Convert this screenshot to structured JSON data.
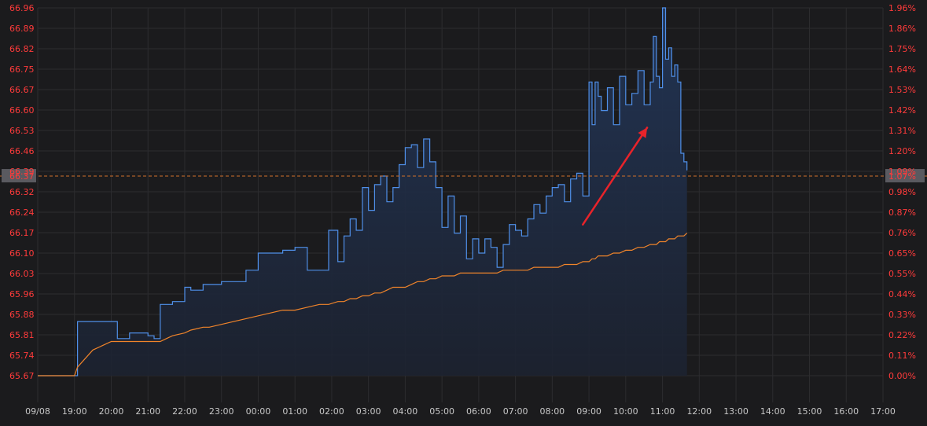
{
  "chart_data": {
    "type": "line",
    "title": "",
    "xlabel": "",
    "ylabel": "",
    "ylim": [
      65.67,
      66.96
    ],
    "pct_lim": [
      0.0,
      1.96
    ],
    "grid": true,
    "colors": {
      "background": "#1b1b1d",
      "grid": "#2c2c2f",
      "price_line": "#4f8fe8",
      "fill_top": "#223556",
      "fill_bottom": "#1c2230",
      "avg_line": "#f0842a",
      "axis_text_left": "#ff3b3b",
      "axis_text_right": "#ff3b3b",
      "time_text": "#c8c8c8",
      "ref_line": "#d0702a",
      "arrow": "#e8232a",
      "ref_box": "#5a5a60"
    },
    "y_ticks_left": [
      "66.96",
      "66.89",
      "66.82",
      "66.75",
      "66.67",
      "66.60",
      "66.53",
      "66.46",
      "66.39",
      "66.32",
      "66.24",
      "66.17",
      "66.10",
      "66.03",
      "65.96",
      "65.88",
      "65.81",
      "65.74",
      "65.67"
    ],
    "y_ticks_right": [
      "1.96%",
      "1.86%",
      "1.75%",
      "1.64%",
      "1.53%",
      "1.42%",
      "1.31%",
      "1.20%",
      "1.09%",
      "0.98%",
      "0.87%",
      "0.76%",
      "0.65%",
      "0.55%",
      "0.44%",
      "0.33%",
      "0.22%",
      "0.11%",
      "0.00%"
    ],
    "x_ticks": [
      "09/08",
      "19:00",
      "20:00",
      "21:00",
      "22:00",
      "23:00",
      "00:00",
      "01:00",
      "02:00",
      "03:00",
      "04:00",
      "05:00",
      "06:00",
      "07:00",
      "08:00",
      "09:00",
      "10:00",
      "11:00",
      "12:00",
      "13:00",
      "14:00",
      "15:00",
      "16:00",
      "17:00"
    ],
    "reference": {
      "price": "66.37",
      "pct": "1.07%"
    },
    "series": [
      {
        "x": [
          "18:00",
          "18:30",
          "19:00",
          "19:05",
          "19:30",
          "20:00",
          "20:10",
          "20:30",
          "20:40",
          "21:00",
          "21:10",
          "21:20",
          "21:30",
          "21:40",
          "22:00",
          "22:10",
          "22:30",
          "22:40",
          "23:00",
          "23:20",
          "23:40",
          "00:00",
          "00:20",
          "00:40",
          "01:00",
          "01:20",
          "01:40",
          "01:55",
          "02:10",
          "02:20",
          "02:30",
          "02:40",
          "02:50",
          "03:00",
          "03:10",
          "03:20",
          "03:30",
          "03:40",
          "03:50",
          "04:00",
          "04:10",
          "04:20",
          "04:30",
          "04:40",
          "04:50",
          "05:00",
          "05:10",
          "05:20",
          "05:30",
          "05:40",
          "05:50",
          "06:00",
          "06:10",
          "06:20",
          "06:30",
          "06:40",
          "06:50",
          "07:00",
          "07:10",
          "07:20",
          "07:30",
          "07:40",
          "07:50",
          "08:00",
          "08:10",
          "08:20",
          "08:30",
          "08:40",
          "08:50",
          "09:00",
          "09:05",
          "09:10",
          "09:15",
          "09:20",
          "09:30",
          "09:40",
          "09:50",
          "10:00",
          "10:10",
          "10:20",
          "10:30",
          "10:40",
          "10:45",
          "10:50",
          "10:55",
          "11:00",
          "11:05",
          "11:10",
          "11:15",
          "11:20",
          "11:25",
          "11:30",
          "11:35",
          "11:40"
        ],
        "values": [
          65.67,
          65.67,
          65.67,
          65.86,
          65.86,
          65.86,
          65.8,
          65.82,
          65.82,
          65.81,
          65.8,
          65.92,
          65.92,
          65.93,
          65.98,
          65.97,
          65.99,
          65.99,
          66.0,
          66.0,
          66.04,
          66.1,
          66.1,
          66.11,
          66.12,
          66.04,
          66.04,
          66.18,
          66.07,
          66.16,
          66.22,
          66.18,
          66.33,
          66.25,
          66.34,
          66.37,
          66.28,
          66.33,
          66.41,
          66.47,
          66.48,
          66.4,
          66.5,
          66.42,
          66.33,
          66.19,
          66.3,
          66.17,
          66.23,
          66.08,
          66.15,
          66.1,
          66.15,
          66.12,
          66.05,
          66.13,
          66.2,
          66.18,
          66.16,
          66.22,
          66.27,
          66.24,
          66.3,
          66.33,
          66.34,
          66.28,
          66.36,
          66.38,
          66.3,
          66.7,
          66.55,
          66.7,
          66.65,
          66.6,
          66.68,
          66.55,
          66.72,
          66.62,
          66.66,
          66.74,
          66.62,
          66.7,
          66.86,
          66.72,
          66.68,
          66.96,
          66.78,
          66.82,
          66.72,
          66.76,
          66.7,
          66.45,
          66.42,
          66.39
        ],
        "avg": [
          65.67,
          65.67,
          65.67,
          65.7,
          65.76,
          65.79,
          65.79,
          65.79,
          65.79,
          65.79,
          65.79,
          65.79,
          65.8,
          65.81,
          65.82,
          65.83,
          65.84,
          65.84,
          65.85,
          65.86,
          65.87,
          65.88,
          65.89,
          65.9,
          65.9,
          65.91,
          65.92,
          65.92,
          65.93,
          65.93,
          65.94,
          65.94,
          65.95,
          65.95,
          65.96,
          65.96,
          65.97,
          65.98,
          65.98,
          65.98,
          65.99,
          66.0,
          66.0,
          66.01,
          66.01,
          66.02,
          66.02,
          66.02,
          66.03,
          66.03,
          66.03,
          66.03,
          66.03,
          66.03,
          66.03,
          66.04,
          66.04,
          66.04,
          66.04,
          66.04,
          66.05,
          66.05,
          66.05,
          66.05,
          66.05,
          66.06,
          66.06,
          66.06,
          66.07,
          66.07,
          66.08,
          66.08,
          66.09,
          66.09,
          66.09,
          66.1,
          66.1,
          66.11,
          66.11,
          66.12,
          66.12,
          66.13,
          66.13,
          66.13,
          66.14,
          66.14,
          66.14,
          66.15,
          66.15,
          66.15,
          66.16,
          66.16,
          66.16,
          66.17
        ]
      }
    ]
  }
}
